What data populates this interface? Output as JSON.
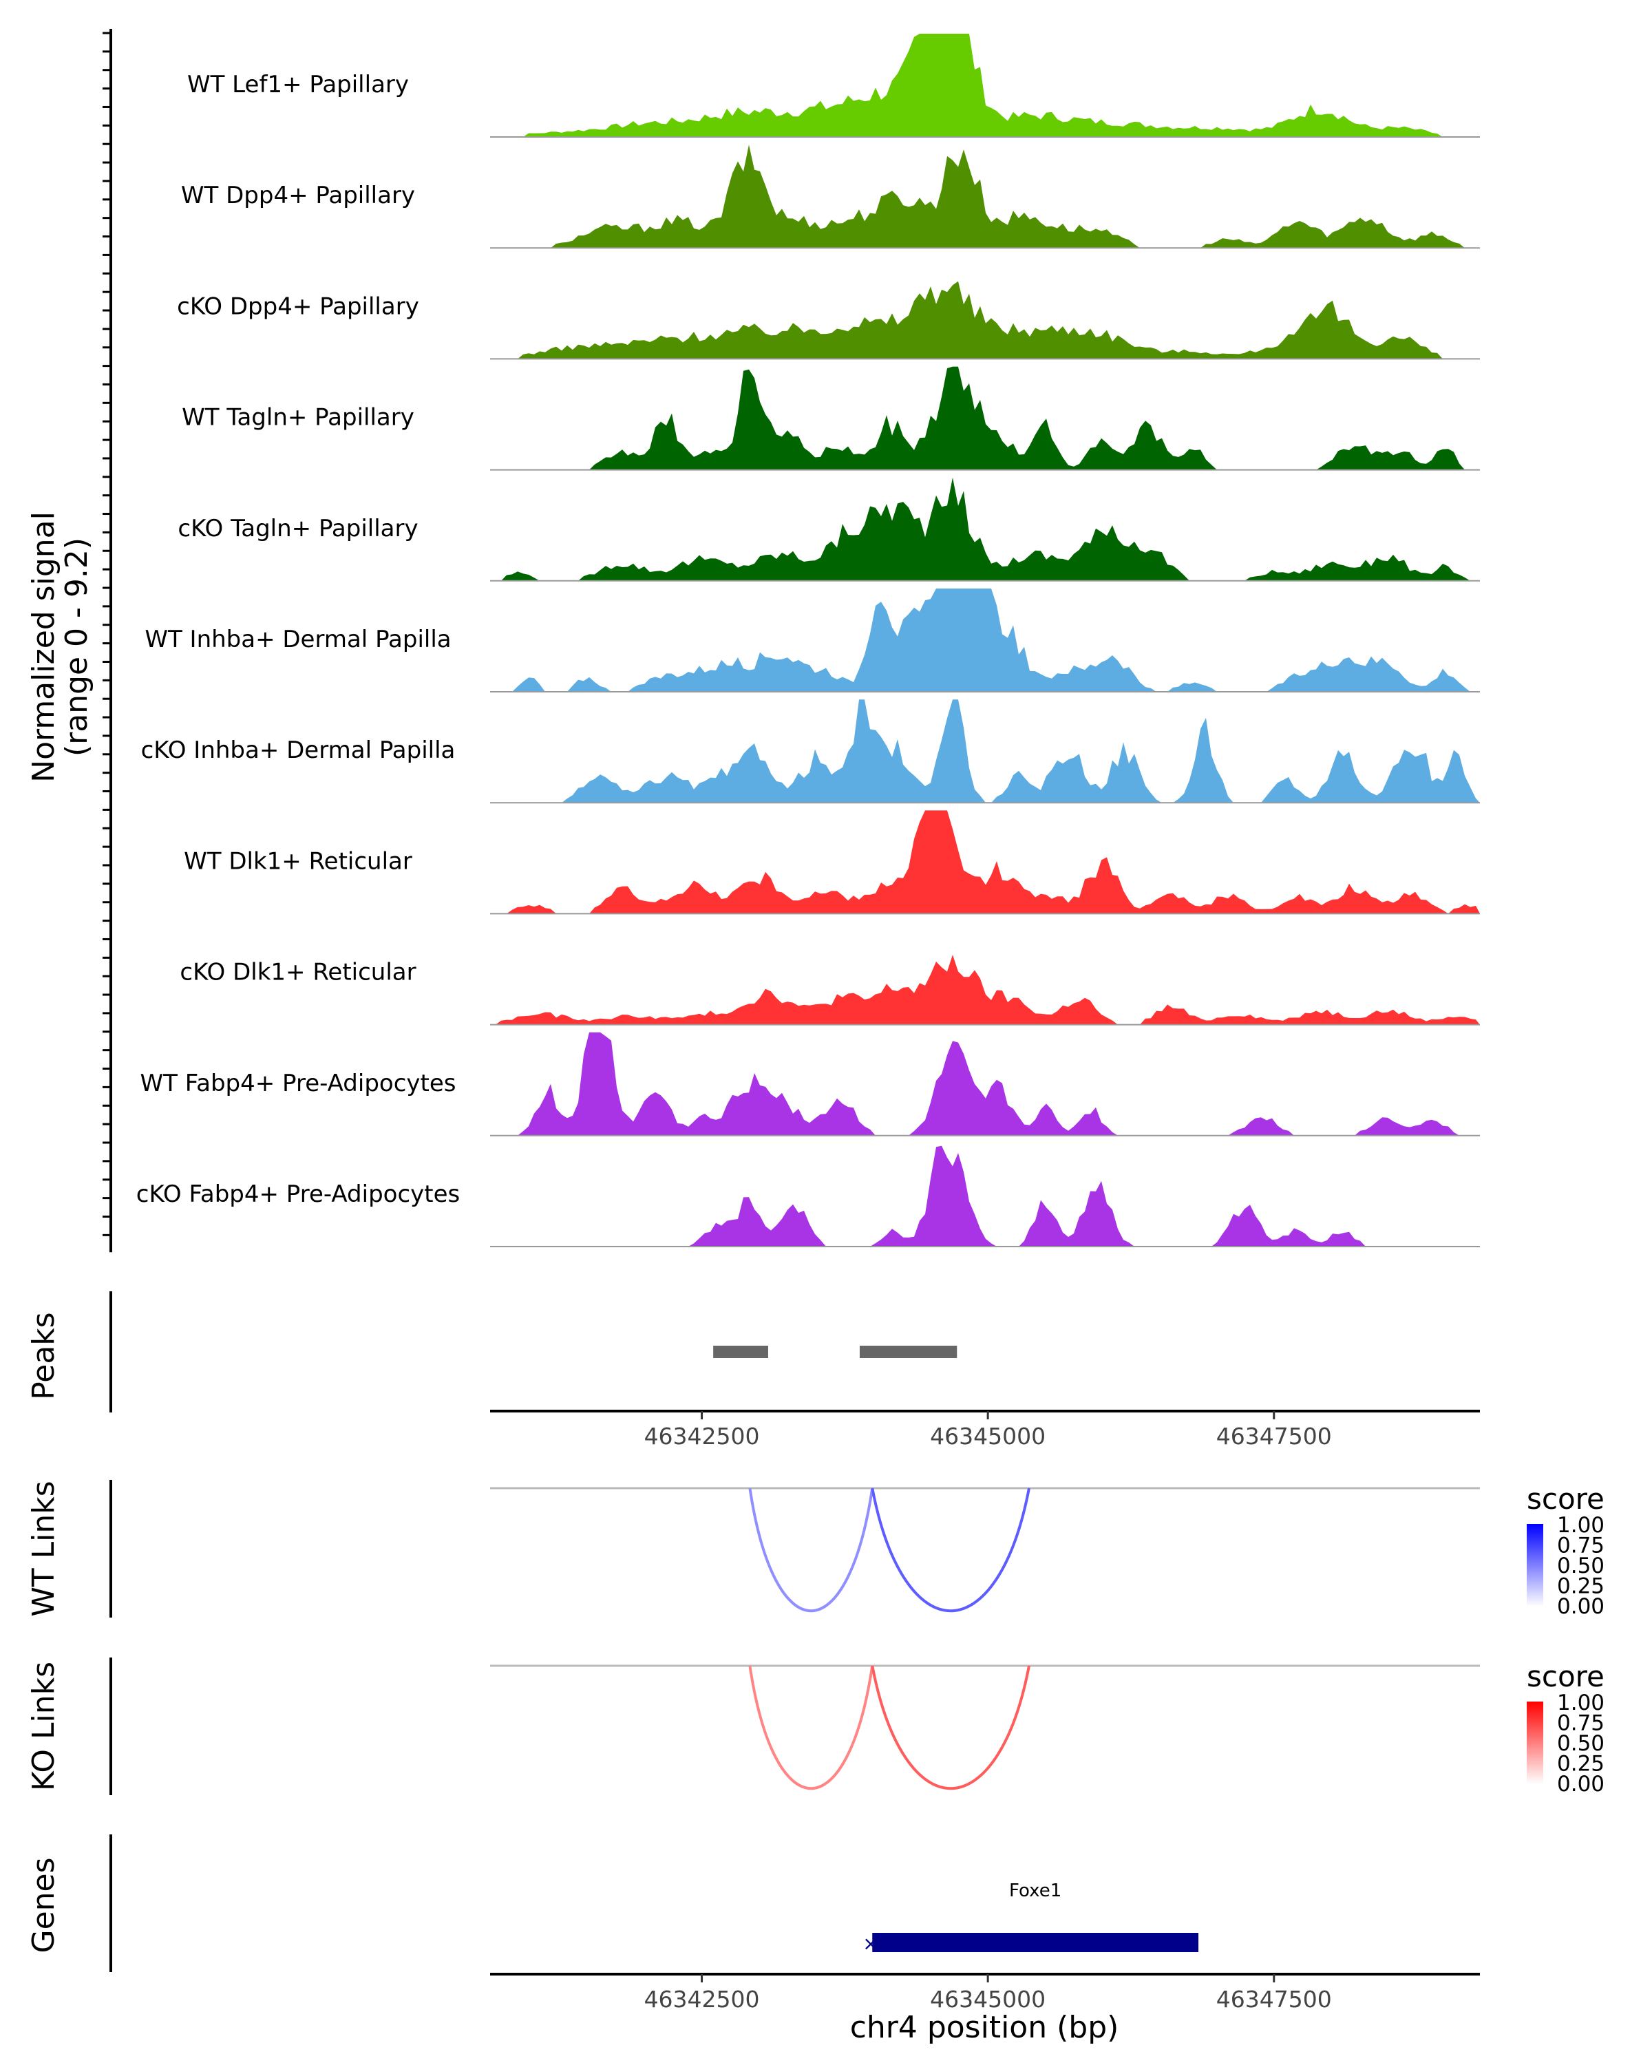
{
  "chart_data": {
    "type": "area",
    "title": "",
    "locus": "chr4",
    "x_range": [
      46340650,
      46349300
    ],
    "xlabel": "chr4 position (bp)",
    "x_ticks": [
      46342500,
      46345000,
      46347500
    ],
    "x_tick_labels": [
      "46342500",
      "46345000",
      "46347500"
    ],
    "coverage": {
      "ylabel_line1": "Normalized signal",
      "ylabel_line2": "(range 0 - 9.2)",
      "y_range": [
        0,
        9.2
      ],
      "tracks": [
        {
          "name": "WT Lef1+ Papillary",
          "color": "#66cc00",
          "peaks": [
            [
              46341300,
              0.25,
              800
            ],
            [
              46342000,
              0.6,
              700
            ],
            [
              46342900,
              1.4,
              900
            ],
            [
              46343600,
              0.9,
              600
            ],
            [
              46344200,
              2.5,
              700
            ],
            [
              46344700,
              6.5,
              350
            ],
            [
              46344500,
              3.0,
              300
            ],
            [
              46345400,
              1.2,
              800
            ],
            [
              46346200,
              0.6,
              700
            ],
            [
              46347000,
              0.5,
              800
            ],
            [
              46347900,
              1.6,
              500
            ],
            [
              46348600,
              0.5,
              500
            ]
          ]
        },
        {
          "name": "WT Dpp4+ Papillary",
          "color": "#4f8f00",
          "peaks": [
            [
              46341650,
              1.0,
              500
            ],
            [
              46342300,
              1.5,
              600
            ],
            [
              46342900,
              4.8,
              300
            ],
            [
              46343300,
              1.5,
              500
            ],
            [
              46343900,
              1.6,
              500
            ],
            [
              46344300,
              2.5,
              400
            ],
            [
              46344760,
              5.5,
              300
            ],
            [
              46345300,
              1.8,
              500
            ],
            [
              46345900,
              1.0,
              500
            ],
            [
              46347100,
              0.5,
              300
            ],
            [
              46347700,
              1.5,
              350
            ],
            [
              46348300,
              1.8,
              400
            ],
            [
              46348900,
              0.8,
              300
            ]
          ]
        },
        {
          "name": "cKO Dpp4+ Papillary",
          "color": "#4f8f00",
          "peaks": [
            [
              46341400,
              0.6,
              700
            ],
            [
              46342200,
              1.0,
              800
            ],
            [
              46342900,
              1.2,
              700
            ],
            [
              46343500,
              1.2,
              700
            ],
            [
              46344000,
              1.5,
              600
            ],
            [
              46344600,
              3.8,
              500
            ],
            [
              46345200,
              1.4,
              700
            ],
            [
              46345900,
              1.5,
              700
            ],
            [
              46346800,
              0.4,
              500
            ],
            [
              46347600,
              0.8,
              500
            ],
            [
              46348000,
              2.5,
              400
            ],
            [
              46348600,
              1.2,
              400
            ]
          ]
        },
        {
          "name": "WT Tagln+ Papillary",
          "color": "#006400",
          "peaks": [
            [
              46341800,
              1.0,
              300
            ],
            [
              46342200,
              2.8,
              250
            ],
            [
              46342600,
              1.2,
              200
            ],
            [
              46342900,
              5.5,
              180
            ],
            [
              46343200,
              2.5,
              300
            ],
            [
              46343700,
              1.4,
              300
            ],
            [
              46344150,
              2.6,
              250
            ],
            [
              46344600,
              3.5,
              300
            ],
            [
              46344800,
              4.0,
              250
            ],
            [
              46345100,
              1.8,
              300
            ],
            [
              46345500,
              2.5,
              200
            ],
            [
              46346000,
              1.5,
              250
            ],
            [
              46346400,
              2.5,
              250
            ],
            [
              46346800,
              1.4,
              200
            ],
            [
              46348200,
              1.5,
              300
            ],
            [
              46348600,
              1.0,
              300
            ],
            [
              46349000,
              1.5,
              150
            ]
          ]
        },
        {
          "name": "cKO Tagln+ Papillary",
          "color": "#006400",
          "peaks": [
            [
              46340900,
              0.5,
              200
            ],
            [
              46341800,
              1.0,
              400
            ],
            [
              46342500,
              1.2,
              500
            ],
            [
              46343200,
              1.5,
              500
            ],
            [
              46343800,
              2.5,
              400
            ],
            [
              46344200,
              4.0,
              400
            ],
            [
              46344700,
              4.8,
              350
            ],
            [
              46345400,
              1.5,
              500
            ],
            [
              46346000,
              2.5,
              400
            ],
            [
              46346400,
              1.8,
              350
            ],
            [
              46347500,
              0.5,
              300
            ],
            [
              46348000,
              1.0,
              400
            ],
            [
              46348500,
              1.4,
              350
            ],
            [
              46349000,
              0.8,
              200
            ]
          ]
        },
        {
          "name": "WT Inhba+ Dermal Papilla",
          "color": "#5dade2",
          "peaks": [
            [
              46341000,
              0.8,
              150
            ],
            [
              46341500,
              0.8,
              200
            ],
            [
              46342200,
              0.8,
              400
            ],
            [
              46342700,
              1.5,
              500
            ],
            [
              46343200,
              2.0,
              400
            ],
            [
              46343600,
              1.0,
              300
            ],
            [
              46344050,
              6.0,
              200
            ],
            [
              46344350,
              3.5,
              300
            ],
            [
              46344700,
              7.5,
              300
            ],
            [
              46344900,
              5.0,
              300
            ],
            [
              46345200,
              3.0,
              250
            ],
            [
              46345700,
              1.2,
              400
            ],
            [
              46346100,
              2.0,
              300
            ],
            [
              46346800,
              0.5,
              300
            ],
            [
              46347700,
              0.7,
              300
            ],
            [
              46348100,
              2.0,
              400
            ],
            [
              46348500,
              1.5,
              300
            ],
            [
              46349000,
              1.2,
              200
            ]
          ]
        },
        {
          "name": "cKO Inhba+ Dermal Papilla",
          "color": "#5dade2",
          "peaks": [
            [
              46341600,
              1.5,
              300
            ],
            [
              46342200,
              1.5,
              400
            ],
            [
              46342700,
              1.5,
              300
            ],
            [
              46343000,
              3.0,
              250
            ],
            [
              46343500,
              2.5,
              300
            ],
            [
              46343900,
              5.5,
              200
            ],
            [
              46344200,
              3.0,
              300
            ],
            [
              46344700,
              6.5,
              200
            ],
            [
              46345250,
              1.5,
              200
            ],
            [
              46345700,
              3.0,
              300
            ],
            [
              46346200,
              3.0,
              250
            ],
            [
              46346900,
              4.0,
              200
            ],
            [
              46347600,
              1.5,
              200
            ],
            [
              46348100,
              3.0,
              250
            ],
            [
              46348700,
              3.5,
              300
            ],
            [
              46349100,
              3.0,
              150
            ]
          ]
        },
        {
          "name": "WT Dlk1+ Reticular",
          "color": "#ff3333",
          "peaks": [
            [
              46341000,
              0.5,
              300
            ],
            [
              46341800,
              1.4,
              300
            ],
            [
              46342400,
              1.6,
              400
            ],
            [
              46343000,
              2.0,
              400
            ],
            [
              46343600,
              1.2,
              400
            ],
            [
              46344100,
              1.5,
              300
            ],
            [
              46344550,
              6.8,
              350
            ],
            [
              46345100,
              2.5,
              300
            ],
            [
              46345500,
              1.2,
              300
            ],
            [
              46346000,
              2.8,
              300
            ],
            [
              46346600,
              1.2,
              300
            ],
            [
              46347100,
              1.0,
              300
            ],
            [
              46347700,
              1.0,
              300
            ],
            [
              46348200,
              1.5,
              300
            ],
            [
              46348700,
              1.2,
              300
            ],
            [
              46349200,
              0.5,
              200
            ]
          ]
        },
        {
          "name": "cKO Dlk1+ Reticular",
          "color": "#ff3333",
          "peaks": [
            [
              46341100,
              0.6,
              500
            ],
            [
              46341900,
              0.5,
              500
            ],
            [
              46342600,
              0.6,
              500
            ],
            [
              46343100,
              1.8,
              400
            ],
            [
              46343700,
              1.5,
              400
            ],
            [
              46344200,
              2.0,
              400
            ],
            [
              46344700,
              3.5,
              400
            ],
            [
              46345200,
              1.4,
              400
            ],
            [
              46345800,
              1.5,
              300
            ],
            [
              46346600,
              1.0,
              300
            ],
            [
              46347200,
              0.6,
              400
            ],
            [
              46347900,
              0.8,
              400
            ],
            [
              46348500,
              0.8,
              400
            ],
            [
              46349100,
              0.5,
              300
            ]
          ]
        },
        {
          "name": "WT Fabp4+ Pre-Adipocytes",
          "color": "#a934e6",
          "peaks": [
            [
              46341150,
              2.5,
              200
            ],
            [
              46341600,
              7.0,
              250
            ],
            [
              46342100,
              2.5,
              250
            ],
            [
              46342500,
              1.0,
              200
            ],
            [
              46342900,
              3.0,
              300
            ],
            [
              46343200,
              2.0,
              300
            ],
            [
              46343700,
              2.0,
              300
            ],
            [
              46344700,
              4.5,
              300
            ],
            [
              46345100,
              2.5,
              250
            ],
            [
              46345500,
              1.5,
              200
            ],
            [
              46345900,
              1.5,
              200
            ],
            [
              46347400,
              1.0,
              300
            ],
            [
              46348500,
              1.0,
              300
            ],
            [
              46348900,
              1.0,
              200
            ]
          ]
        },
        {
          "name": "cKO Fabp4+ Pre-Adipocytes",
          "color": "#a934e6",
          "peaks": [
            [
              46342600,
              1.0,
              200
            ],
            [
              46342900,
              2.5,
              250
            ],
            [
              46343300,
              2.5,
              250
            ],
            [
              46344150,
              1.0,
              150
            ],
            [
              46344650,
              6.0,
              300
            ],
            [
              46345500,
              2.5,
              200
            ],
            [
              46345950,
              3.5,
              250
            ],
            [
              46347250,
              2.5,
              250
            ],
            [
              46347700,
              1.0,
              200
            ],
            [
              46348100,
              1.0,
              200
            ]
          ]
        }
      ]
    },
    "peaks": {
      "label": "Peaks",
      "color": "#666666",
      "regions": [
        [
          46342600,
          46343080
        ],
        [
          46343880,
          46344730
        ]
      ]
    },
    "wt_links": {
      "label": "WT Links",
      "legend_title": "score",
      "legend_ticks": [
        "1.00",
        "0.75",
        "0.50",
        "0.25",
        "0.00"
      ],
      "color_high": "#0000ff",
      "links": [
        {
          "start": 46342920,
          "end": 46343990,
          "score": 0.3
        },
        {
          "start": 46343990,
          "end": 46345360,
          "score": 0.55
        }
      ]
    },
    "ko_links": {
      "label": "KO Links",
      "legend_title": "score",
      "legend_ticks": [
        "1.00",
        "0.75",
        "0.50",
        "0.25",
        "0.00"
      ],
      "color_high": "#ff0000",
      "links": [
        {
          "start": 46342920,
          "end": 46343990,
          "score": 0.35
        },
        {
          "start": 46343990,
          "end": 46345360,
          "score": 0.55
        }
      ]
    },
    "genes": {
      "label": "Genes",
      "color": "#00008b",
      "genes": [
        {
          "name": "Foxe1",
          "start": 46343990,
          "end": 46346840,
          "strand": "+"
        }
      ]
    }
  }
}
